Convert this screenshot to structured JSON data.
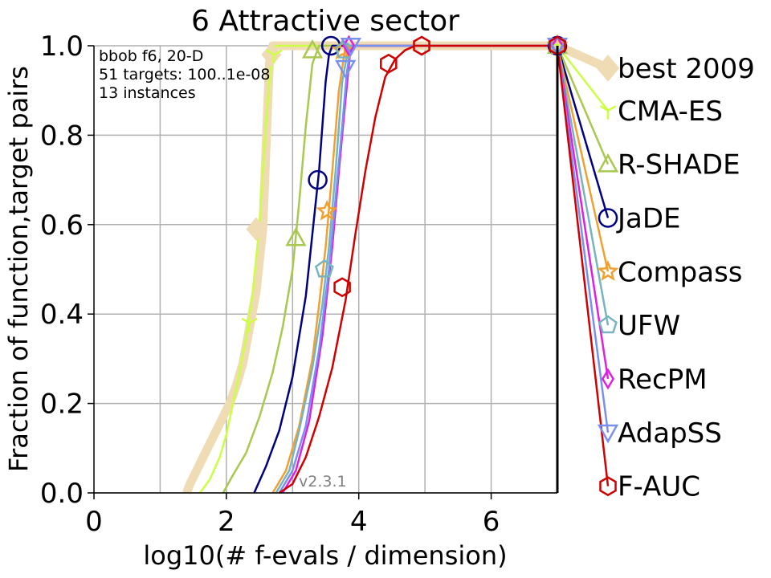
{
  "chart_data": {
    "type": "line",
    "title": "6 Attractive sector",
    "xlabel": "log10(# f-evals / dimension)",
    "ylabel": "Fraction of function,target pairs",
    "xlim": [
      0,
      7
    ],
    "ylim": [
      0,
      1
    ],
    "xticks": [
      0,
      2,
      4,
      6
    ],
    "xtick_labels": [
      "0",
      "2",
      "4",
      "6"
    ],
    "yticks": [
      0,
      0.2,
      0.4,
      0.6,
      0.8,
      1.0
    ],
    "ytick_labels": [
      "0.0",
      "0.2",
      "0.4",
      "0.6",
      "0.8",
      "1.0"
    ],
    "grid": true,
    "info_lines": [
      "bbob f6, 20-D",
      "51 targets: 100..1e-08",
      "13 instances"
    ],
    "version": "v2.3.1",
    "legend_position": "right",
    "series": [
      {
        "name": "best 2009",
        "color": "#f0dcb4",
        "marker": "diamond",
        "width": 11,
        "x": [
          1.4,
          1.45,
          1.55,
          1.65,
          1.75,
          1.85,
          1.95,
          2.05,
          2.15,
          2.25,
          2.35,
          2.45,
          2.5,
          2.55,
          2.58,
          2.62,
          2.65,
          2.7,
          2.72,
          7.0
        ],
        "y": [
          0.0,
          0.02,
          0.05,
          0.08,
          0.11,
          0.14,
          0.17,
          0.2,
          0.24,
          0.29,
          0.37,
          0.45,
          0.52,
          0.59,
          0.7,
          0.85,
          0.96,
          1.0,
          1.0,
          1.0
        ],
        "marker_points": [
          [
            2.45,
            0.59
          ],
          [
            2.68,
            0.98
          ],
          [
            7.0,
            1.0
          ]
        ],
        "legend_end": 0.975
      },
      {
        "name": "CMA-ES",
        "color": "#ccff44",
        "marker": "tri",
        "width": 2.5,
        "x": [
          1.6,
          1.75,
          1.9,
          2.0,
          2.1,
          2.2,
          2.3,
          2.4,
          2.5,
          2.55,
          2.6,
          2.65,
          2.7,
          2.75,
          2.8,
          7.0
        ],
        "y": [
          0.0,
          0.03,
          0.08,
          0.13,
          0.2,
          0.27,
          0.35,
          0.45,
          0.6,
          0.72,
          0.83,
          0.92,
          0.98,
          1.0,
          1.0,
          1.0
        ],
        "marker_points": [
          [
            2.35,
            0.38
          ],
          [
            2.72,
            0.98
          ],
          [
            7.0,
            1.0
          ]
        ],
        "legend_end": 0.855
      },
      {
        "name": "R-SHADE",
        "color": "#a8c850",
        "marker": "triangle-up",
        "width": 2.5,
        "x": [
          1.95,
          2.1,
          2.3,
          2.5,
          2.7,
          2.85,
          3.0,
          3.1,
          3.2,
          3.3,
          3.4,
          7.0
        ],
        "y": [
          0.0,
          0.04,
          0.09,
          0.17,
          0.27,
          0.37,
          0.5,
          0.65,
          0.82,
          0.96,
          1.0,
          1.0
        ],
        "marker_points": [
          [
            3.05,
            0.57
          ],
          [
            3.3,
            0.99
          ],
          [
            7.0,
            1.0
          ]
        ],
        "legend_end": 0.735
      },
      {
        "name": "JaDE",
        "color": "#000080",
        "marker": "circle",
        "width": 2.5,
        "x": [
          2.42,
          2.6,
          2.8,
          3.0,
          3.2,
          3.3,
          3.4,
          3.45,
          3.5,
          3.55,
          3.6,
          7.0
        ],
        "y": [
          0.0,
          0.06,
          0.14,
          0.26,
          0.44,
          0.58,
          0.72,
          0.82,
          0.92,
          0.98,
          1.0,
          1.0
        ],
        "marker_points": [
          [
            3.38,
            0.7
          ],
          [
            3.58,
            1.0
          ],
          [
            7.0,
            1.0
          ]
        ],
        "legend_end": 0.615
      },
      {
        "name": "Compass",
        "color": "#f0a030",
        "marker": "star",
        "width": 2.5,
        "x": [
          2.7,
          2.9,
          3.1,
          3.3,
          3.4,
          3.5,
          3.6,
          3.7,
          3.8,
          7.0
        ],
        "y": [
          0.0,
          0.05,
          0.15,
          0.3,
          0.42,
          0.55,
          0.72,
          0.9,
          1.0,
          1.0
        ],
        "marker_points": [
          [
            3.52,
            0.63
          ],
          [
            3.75,
            0.99
          ],
          [
            7.0,
            1.0
          ]
        ],
        "legend_end": 0.495
      },
      {
        "name": "UFW",
        "color": "#78b4c0",
        "marker": "pentagon",
        "width": 2.5,
        "x": [
          2.75,
          2.95,
          3.1,
          3.3,
          3.45,
          3.55,
          3.65,
          3.75,
          3.85,
          7.0
        ],
        "y": [
          0.0,
          0.05,
          0.14,
          0.28,
          0.42,
          0.55,
          0.72,
          0.92,
          1.0,
          1.0
        ],
        "marker_points": [
          [
            3.48,
            0.5
          ],
          [
            3.78,
            0.99
          ],
          [
            7.0,
            1.0
          ]
        ],
        "legend_end": 0.375
      },
      {
        "name": "RecPM",
        "color": "#e020e0",
        "marker": "diamond-thin",
        "width": 2.5,
        "x": [
          2.85,
          3.05,
          3.25,
          3.45,
          3.6,
          3.7,
          3.8,
          3.88,
          7.0
        ],
        "y": [
          0.0,
          0.05,
          0.16,
          0.35,
          0.55,
          0.72,
          0.88,
          1.0,
          1.0
        ],
        "marker_points": [
          [
            3.85,
            1.0
          ],
          [
            7.0,
            1.0
          ]
        ],
        "legend_end": 0.255
      },
      {
        "name": "AdapSS",
        "color": "#7890f0",
        "marker": "triangle-down",
        "width": 2.5,
        "x": [
          2.8,
          3.0,
          3.2,
          3.4,
          3.55,
          3.65,
          3.75,
          3.82,
          3.88,
          7.0
        ],
        "y": [
          0.0,
          0.05,
          0.15,
          0.32,
          0.5,
          0.66,
          0.82,
          0.94,
          1.0,
          1.0
        ],
        "marker_points": [
          [
            3.8,
            0.95
          ],
          [
            3.88,
            1.0
          ],
          [
            7.0,
            1.0
          ]
        ],
        "legend_end": 0.135
      },
      {
        "name": "F-AUC",
        "color": "#d00000",
        "marker": "hexagon",
        "width": 2.5,
        "x": [
          2.8,
          3.0,
          3.2,
          3.4,
          3.6,
          3.8,
          3.95,
          4.1,
          4.25,
          4.4,
          4.55,
          4.7,
          4.85,
          5.0,
          7.0
        ],
        "y": [
          0.0,
          0.02,
          0.08,
          0.17,
          0.28,
          0.43,
          0.58,
          0.72,
          0.84,
          0.93,
          0.97,
          0.99,
          1.0,
          1.0,
          1.0
        ],
        "marker_points": [
          [
            3.75,
            0.46
          ],
          [
            4.45,
            0.96
          ],
          [
            4.95,
            1.0
          ],
          [
            7.0,
            1.0
          ]
        ],
        "legend_end": 0.015
      }
    ]
  }
}
